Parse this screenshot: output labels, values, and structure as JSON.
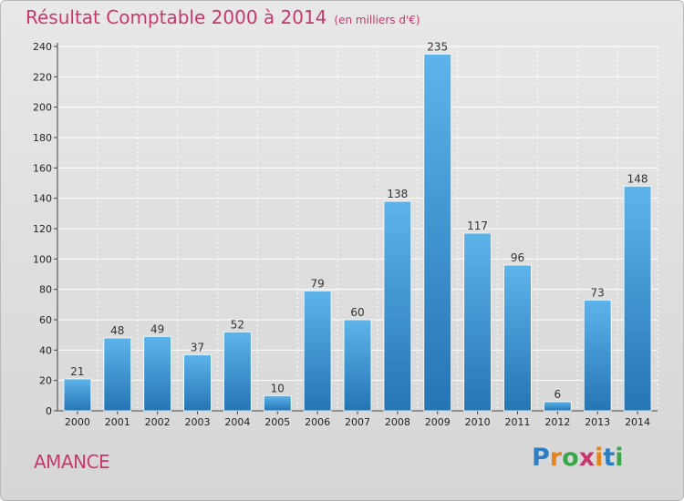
{
  "title": "Résultat Comptable 2000 à 2014",
  "unit": "(en milliers d'€)",
  "commune": "AMANCE",
  "logo": {
    "letters": [
      "P",
      "r",
      "o",
      "x",
      "i",
      "t",
      "i"
    ],
    "colors": [
      "#2e7fc1",
      "#e8841b",
      "#3aa84a",
      "#c8386e",
      "#e8841b",
      "#2e7fc1",
      "#3aa84a"
    ]
  },
  "colors": {
    "bar_top": "#5db4ea",
    "bar_bottom": "#2475b4",
    "title": "#c8386e"
  },
  "chart_data": {
    "type": "bar",
    "title": "Résultat Comptable 2000 à 2014",
    "subtitle": "(en milliers d'€)",
    "categories": [
      "2000",
      "2001",
      "2002",
      "2003",
      "2004",
      "2005",
      "2006",
      "2007",
      "2008",
      "2009",
      "2010",
      "2011",
      "2012",
      "2013",
      "2014"
    ],
    "values": [
      21,
      48,
      49,
      37,
      52,
      10,
      79,
      60,
      138,
      235,
      117,
      96,
      6,
      73,
      148
    ],
    "ylim": [
      0,
      240
    ],
    "yticks": [
      0,
      20,
      40,
      60,
      80,
      100,
      120,
      140,
      160,
      180,
      200,
      220,
      240
    ],
    "grid": true,
    "data_labels": true
  }
}
